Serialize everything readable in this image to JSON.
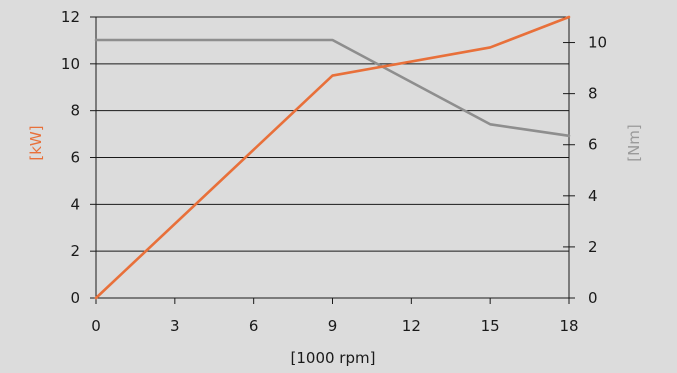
{
  "chart_data": {
    "type": "line",
    "xlabel": "[1000 rpm]",
    "ylabel_left": "[kW]",
    "ylabel_right": "[Nm]",
    "xlim": [
      0,
      18
    ],
    "ylim_left": [
      0,
      12
    ],
    "ylim_right": [
      0,
      11
    ],
    "x_ticks": [
      "0",
      "3",
      "6",
      "9",
      "12",
      "15",
      "18"
    ],
    "y_ticks_left": [
      "0",
      "2",
      "4",
      "6",
      "8",
      "10",
      "12"
    ],
    "y_ticks_right": [
      "0",
      "2",
      "4",
      "6",
      "8",
      "10"
    ],
    "grid": "horizontal",
    "series": [
      {
        "axis": "left",
        "color": "#e8703a",
        "x": [
          0,
          9,
          15,
          18
        ],
        "y": [
          0,
          9.5,
          10.7,
          12
        ]
      },
      {
        "axis": "right",
        "color": "#8e8e8e",
        "x": [
          0,
          9,
          15,
          18
        ],
        "y": [
          10.1,
          10.1,
          6.8,
          6.35
        ]
      }
    ]
  }
}
